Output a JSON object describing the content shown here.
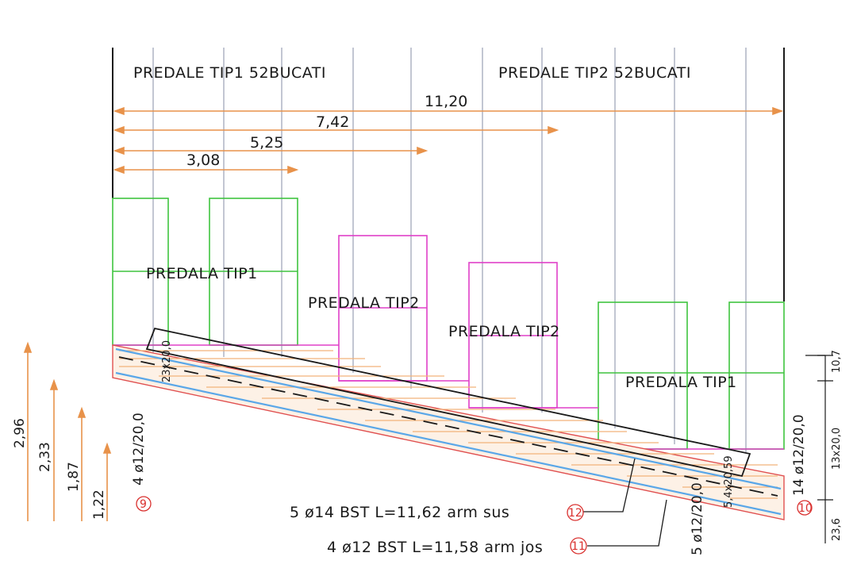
{
  "top_labels": {
    "left": "PREDALE TIP1 52BUCATI",
    "right": "PREDALE TIP2 52BUCATI"
  },
  "horizontal_dimensions": [
    "11,20",
    "7,42",
    "5,25",
    "3,08"
  ],
  "panel_labels": [
    "PREDALA TIP1",
    "PREDALA TIP2",
    "PREDALA TIP2",
    "PREDALA TIP1"
  ],
  "vertical_dimensions": [
    "2,96",
    "2,33",
    "1,87",
    "1,22"
  ],
  "rebar_notes": {
    "top": "5 ø14 BST L=11,62 arm sus",
    "bottom": "4 ø12 BST L=11,58 arm jos"
  },
  "bar_tags": {
    "left": "9",
    "right": "10",
    "top_bar": "12",
    "bottom_bar": "11"
  },
  "spacing_labels": {
    "left_stirrups": "4 ø12/20,0",
    "left_small": "23x20,0",
    "center": "5 ø12/20,0",
    "right_small": "5,4x20,59",
    "right_stirrups": "14 ø12/20,0",
    "right_dim_top": "10,7",
    "right_dim_mid": "13x20,0",
    "right_dim_bottom": "23,6"
  },
  "colors": {
    "ink": "#1a1a1a",
    "grid": "#9aa0b5",
    "dim_orange": "#e8924a",
    "green": "#3fc43f",
    "magenta": "#e040c8",
    "blue": "#5aa7e8",
    "red": "#e05050",
    "hatch": "#f2b27a"
  }
}
